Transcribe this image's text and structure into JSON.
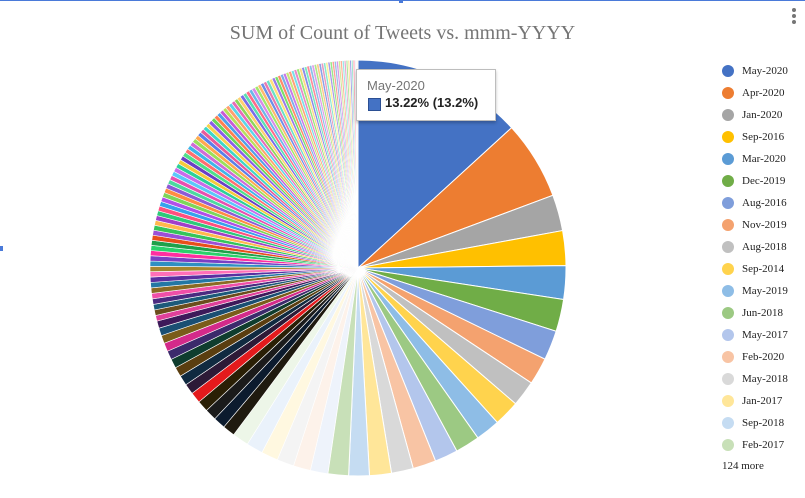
{
  "chart_data": {
    "type": "pie",
    "title": "SUM of Count of Tweets vs. mmm-YYYY",
    "legend_position": "right",
    "slices": [
      {
        "label": "May-2020",
        "percent": 13.22,
        "color": "#4472c4"
      },
      {
        "label": "Apr-2020",
        "percent": 6.1,
        "color": "#ed7d31"
      },
      {
        "label": "Jan-2020",
        "percent": 2.8,
        "color": "#a5a5a5"
      },
      {
        "label": "Sep-2016",
        "percent": 2.7,
        "color": "#ffc000"
      },
      {
        "label": "Mar-2020",
        "percent": 2.6,
        "color": "#5b9bd5"
      },
      {
        "label": "Dec-2019",
        "percent": 2.5,
        "color": "#70ad47"
      },
      {
        "label": "Aug-2016",
        "percent": 2.3,
        "color": "#7f9edb"
      },
      {
        "label": "Nov-2019",
        "percent": 2.1,
        "color": "#f4a26f"
      },
      {
        "label": "Aug-2018",
        "percent": 2.0,
        "color": "#c0c0c0"
      },
      {
        "label": "Sep-2014",
        "percent": 2.0,
        "color": "#ffd34d"
      },
      {
        "label": "May-2019",
        "percent": 1.9,
        "color": "#8ebde6"
      },
      {
        "label": "Jun-2018",
        "percent": 1.9,
        "color": "#9cc983"
      },
      {
        "label": "May-2017",
        "percent": 1.8,
        "color": "#b3c6ec"
      },
      {
        "label": "Feb-2020",
        "percent": 1.8,
        "color": "#f8c4a4"
      },
      {
        "label": "May-2018",
        "percent": 1.7,
        "color": "#d9d9d9"
      },
      {
        "label": "Jan-2017",
        "percent": 1.7,
        "color": "#ffe699"
      },
      {
        "label": "Sep-2018",
        "percent": 1.6,
        "color": "#c5dcf2"
      },
      {
        "label": "Feb-2017",
        "percent": 1.6,
        "color": "#c8e0b8"
      }
    ],
    "other_slices_count": 124
  },
  "legend": {
    "more_label": "124 more"
  },
  "tooltip": {
    "title": "May-2020",
    "value": "13.22% (13.2%)"
  },
  "remaining_slice_palette": [
    "#eef3fb",
    "#fdf2ea",
    "#f4f4f4",
    "#fff8e0",
    "#eaf2fb",
    "#edf6e8",
    "#1f1a0f",
    "#0c1b2e",
    "#1b1b1b",
    "#2a1f05",
    "#e41a1c",
    "#2d1a37",
    "#102a40",
    "#5a3e10",
    "#0f3d2e",
    "#3b2a6b",
    "#d42a8a",
    "#7a5c1a",
    "#1a4f73",
    "#3d1a5a",
    "#e0409a",
    "#6b4d1c",
    "#1c5a7a",
    "#4b2b80",
    "#f04fa8",
    "#8a6a24",
    "#2377a4",
    "#5a2fa0",
    "#ff6fb8",
    "#a7862f",
    "#2f8fc2",
    "#7b3fc4",
    "#ff2fa0",
    "#2bd16b",
    "#1fa04a",
    "#e84e1b",
    "#9c4fd6",
    "#36c45a",
    "#ffb84d",
    "#a13fc8",
    "#2ec97a",
    "#ff4f7f",
    "#36a2eb",
    "#b04fe8",
    "#7cd65a",
    "#ff8c42",
    "#8e5ad6",
    "#4cd9a0",
    "#e84fb0",
    "#5ac8fa",
    "#c96bea",
    "#2bd19a",
    "#f4ca3c",
    "#6a3fc4",
    "#4fe08a",
    "#ff6f6f",
    "#3fb6e8",
    "#d06bd6",
    "#9be05a",
    "#ffa94f",
    "#5a7fe8",
    "#e85a9a",
    "#3fd6c8",
    "#f7d24f",
    "#8a5ae8",
    "#6ad65a",
    "#ff7f50",
    "#4fa0e8",
    "#c85ad6",
    "#b8e05a",
    "#ff9f6f",
    "#5ad6e8",
    "#e86bb8",
    "#8ed65a",
    "#ffd06f",
    "#7a6be8",
    "#5ae0b0",
    "#ff6b8a",
    "#6bb8e8",
    "#d88be8",
    "#a0e86b",
    "#ffb86f",
    "#6b8ee8",
    "#e87ab0",
    "#6be0c8",
    "#ffe07a",
    "#9a7ae8",
    "#7ae06b",
    "#ff8a6b",
    "#7ab0e8",
    "#c87ae8",
    "#c8e87a",
    "#ffa07a",
    "#7ae0e8",
    "#e88ac8",
    "#9ae87a",
    "#ffd88a",
    "#8a8ae8",
    "#7ae8c0",
    "#ff8a9a",
    "#8ac0e8",
    "#e0a0e8",
    "#b0e88a",
    "#ffc88a",
    "#8aa0e8",
    "#e89ac0",
    "#8ae8d0",
    "#fff09a",
    "#a89ae8",
    "#9ae88a",
    "#ffa09a",
    "#9ac0e8",
    "#d89ae8",
    "#d0e89a",
    "#ffb09a",
    "#9ae8e8",
    "#e8a8d0",
    "#b0e89a",
    "#ffe0a0",
    "#a0a0e8",
    "#a0e8d0",
    "#ffa0b0"
  ]
}
